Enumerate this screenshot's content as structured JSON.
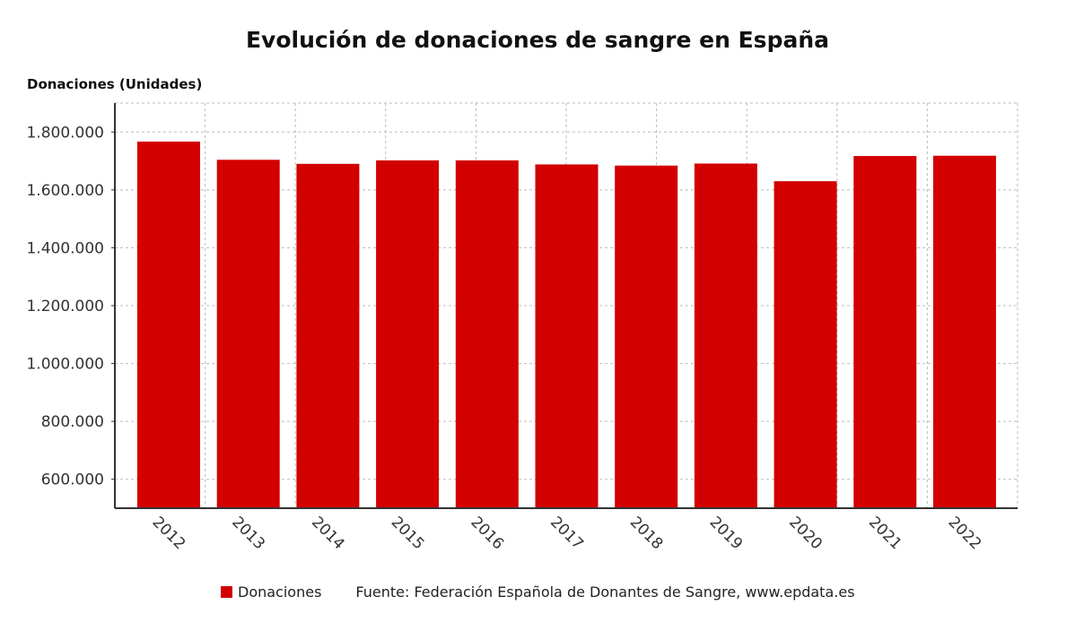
{
  "chart_data": {
    "type": "bar",
    "title": "Evolución de donaciones de sangre en España",
    "ylabel": "Donaciones (Unidades)",
    "xlabel": "",
    "categories": [
      "2012",
      "2013",
      "2014",
      "2015",
      "2016",
      "2017",
      "2018",
      "2019",
      "2020",
      "2021",
      "2022"
    ],
    "series": [
      {
        "name": "Donaciones",
        "color": "#d20000",
        "values": [
          1767000,
          1704000,
          1690000,
          1702000,
          1702000,
          1688000,
          1684000,
          1691000,
          1630000,
          1717000,
          1718000
        ]
      }
    ],
    "ylim": [
      500000,
      1900000
    ],
    "yticks": [
      600000,
      800000,
      1000000,
      1200000,
      1400000,
      1600000,
      1800000
    ],
    "ytick_labels": [
      "600.000",
      "800.000",
      "1.000.000",
      "1.200.000",
      "1.400.000",
      "1.600.000",
      "1.800.000"
    ],
    "grid": true,
    "legend_position": "bottom"
  },
  "source": "Fuente: Federación Española de Donantes de Sangre, www.epdata.es"
}
